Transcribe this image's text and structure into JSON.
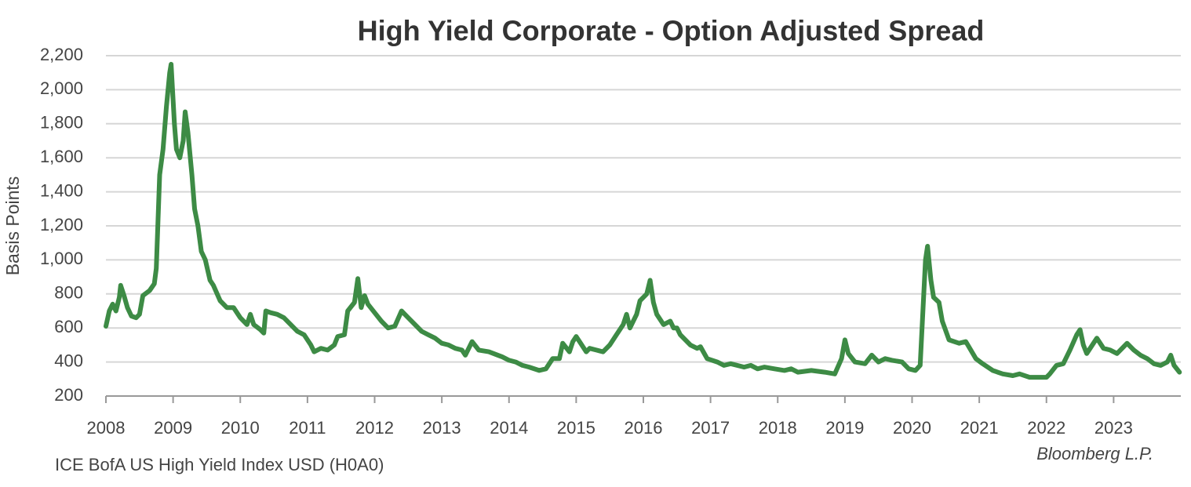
{
  "chart_data": {
    "type": "line",
    "title": "High Yield Corporate - Option Adjusted Spread",
    "y_label": "Basis Points",
    "source": "ICE BofA US High Yield Index USD (H0A0)",
    "credit": "Bloomberg L.P.",
    "color": "#3d8b45",
    "grid": true,
    "xlim": [
      2008,
      2024
    ],
    "xticks": [
      2008,
      2009,
      2010,
      2011,
      2012,
      2013,
      2014,
      2015,
      2016,
      2017,
      2018,
      2019,
      2020,
      2021,
      2022,
      2023
    ],
    "ylim": [
      200,
      2200
    ],
    "yticks": [
      200,
      400,
      600,
      800,
      {
        "value": 1000,
        "label": "1,000"
      },
      {
        "value": 1200,
        "label": "1,200"
      },
      {
        "value": 1400,
        "label": "1,400"
      },
      {
        "value": 1600,
        "label": "1,600"
      },
      {
        "value": 1800,
        "label": "1,800"
      },
      {
        "value": 2000,
        "label": "2,000"
      },
      {
        "value": 2200,
        "label": "2,200"
      }
    ],
    "x": [
      2008.0,
      2008.05,
      2008.1,
      2008.15,
      2008.2,
      2008.22,
      2008.27,
      2008.32,
      2008.38,
      2008.45,
      2008.5,
      2008.55,
      2008.65,
      2008.72,
      2008.75,
      2008.8,
      2008.85,
      2008.9,
      2008.95,
      2008.97,
      2009.02,
      2009.05,
      2009.1,
      2009.15,
      2009.18,
      2009.22,
      2009.28,
      2009.32,
      2009.37,
      2009.42,
      2009.48,
      2009.55,
      2009.6,
      2009.7,
      2009.8,
      2009.9,
      2010.0,
      2010.1,
      2010.15,
      2010.2,
      2010.3,
      2010.35,
      2010.38,
      2010.45,
      2010.55,
      2010.65,
      2010.75,
      2010.85,
      2010.95,
      2011.05,
      2011.1,
      2011.2,
      2011.3,
      2011.4,
      2011.45,
      2011.55,
      2011.6,
      2011.7,
      2011.75,
      2011.8,
      2011.85,
      2011.9,
      2012.0,
      2012.1,
      2012.2,
      2012.3,
      2012.4,
      2012.5,
      2012.6,
      2012.7,
      2012.8,
      2012.9,
      2013.0,
      2013.1,
      2013.2,
      2013.3,
      2013.35,
      2013.45,
      2013.55,
      2013.7,
      2013.9,
      2014.0,
      2014.1,
      2014.2,
      2014.3,
      2014.45,
      2014.55,
      2014.65,
      2014.75,
      2014.8,
      2014.9,
      2014.95,
      2015.0,
      2015.05,
      2015.15,
      2015.2,
      2015.3,
      2015.4,
      2015.5,
      2015.6,
      2015.7,
      2015.75,
      2015.8,
      2015.9,
      2015.95,
      2016.05,
      2016.1,
      2016.15,
      2016.2,
      2016.3,
      2016.4,
      2016.45,
      2016.5,
      2016.55,
      2016.7,
      2016.8,
      2016.85,
      2016.95,
      2017.1,
      2017.2,
      2017.3,
      2017.5,
      2017.6,
      2017.7,
      2017.8,
      2017.95,
      2018.1,
      2018.2,
      2018.3,
      2018.5,
      2018.7,
      2018.85,
      2018.95,
      2019.0,
      2019.05,
      2019.15,
      2019.3,
      2019.4,
      2019.5,
      2019.6,
      2019.7,
      2019.85,
      2019.95,
      2020.05,
      2020.12,
      2020.2,
      2020.23,
      2020.28,
      2020.32,
      2020.4,
      2020.45,
      2020.55,
      2020.7,
      2020.8,
      2020.95,
      2021.05,
      2021.2,
      2021.35,
      2021.5,
      2021.6,
      2021.75,
      2021.9,
      2022.0,
      2022.05,
      2022.15,
      2022.25,
      2022.35,
      2022.45,
      2022.5,
      2022.55,
      2022.6,
      2022.7,
      2022.75,
      2022.85,
      2022.95,
      2023.05,
      2023.15,
      2023.2,
      2023.3,
      2023.4,
      2023.5,
      2023.6,
      2023.7,
      2023.8,
      2023.85,
      2023.9,
      2023.98
    ],
    "values": [
      610,
      700,
      740,
      700,
      780,
      850,
      790,
      720,
      670,
      660,
      680,
      790,
      820,
      860,
      950,
      1500,
      1650,
      1900,
      2100,
      2150,
      1800,
      1650,
      1600,
      1700,
      1870,
      1750,
      1500,
      1300,
      1200,
      1050,
      1000,
      880,
      850,
      760,
      720,
      720,
      660,
      620,
      680,
      620,
      590,
      570,
      700,
      690,
      680,
      660,
      620,
      580,
      560,
      500,
      460,
      480,
      470,
      500,
      550,
      560,
      700,
      750,
      890,
      720,
      790,
      740,
      690,
      640,
      600,
      610,
      700,
      660,
      620,
      580,
      560,
      540,
      510,
      500,
      480,
      470,
      440,
      520,
      470,
      460,
      430,
      410,
      400,
      380,
      370,
      350,
      360,
      420,
      420,
      510,
      460,
      520,
      550,
      520,
      460,
      480,
      470,
      460,
      500,
      560,
      620,
      680,
      600,
      680,
      760,
      800,
      880,
      750,
      680,
      620,
      640,
      600,
      600,
      560,
      500,
      480,
      490,
      420,
      400,
      380,
      390,
      370,
      380,
      360,
      370,
      360,
      350,
      360,
      340,
      350,
      340,
      330,
      420,
      530,
      450,
      400,
      390,
      440,
      400,
      420,
      410,
      400,
      360,
      350,
      380,
      1000,
      1080,
      880,
      780,
      750,
      640,
      530,
      510,
      520,
      420,
      390,
      350,
      330,
      320,
      330,
      310,
      310,
      310,
      330,
      380,
      390,
      470,
      560,
      590,
      500,
      450,
      510,
      540,
      480,
      470,
      450,
      490,
      510,
      470,
      440,
      420,
      390,
      380,
      400,
      440,
      380,
      340
    ]
  }
}
